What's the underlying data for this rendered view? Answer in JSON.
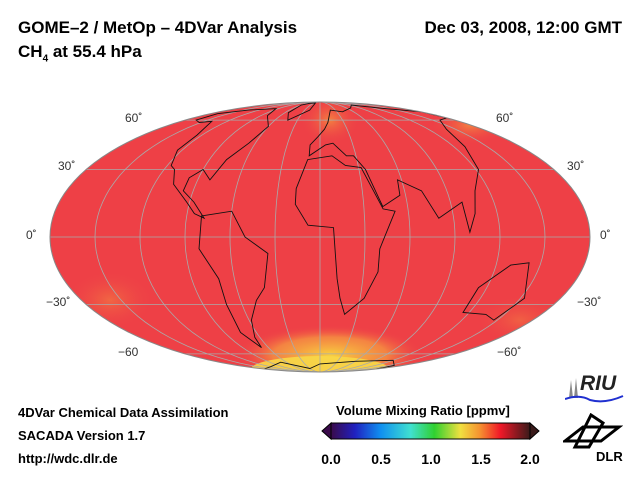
{
  "header": {
    "title": "GOME–2 / MetOp – 4DVar Analysis",
    "species": "CH",
    "species_sub": "4",
    "level": " at 55.4 hPa",
    "datetime": "Dec 03, 2008, 12:00 GMT"
  },
  "map": {
    "lat_labels_left": [
      "60˚",
      "30˚",
      "0˚",
      "−30˚",
      "−60"
    ],
    "lat_labels_right": [
      "60˚",
      "30˚",
      "0˚",
      "−30˚",
      "−60˚"
    ],
    "fill_color": "#ee4046",
    "highlight_color": "#f5c040"
  },
  "footer": {
    "line1": "4DVar Chemical Data Assimilation",
    "line2": "SACADA Version 1.7",
    "line3": "http://wdc.dlr.de"
  },
  "colorbar": {
    "label": "Volume Mixing Ratio [ppmv]",
    "ticks": [
      "0.0",
      "0.5",
      "1.0",
      "1.5",
      "2.0"
    ],
    "min": 0.0,
    "max": 2.0
  },
  "logos": {
    "riu": "RIU",
    "dlr": "DLR"
  }
}
